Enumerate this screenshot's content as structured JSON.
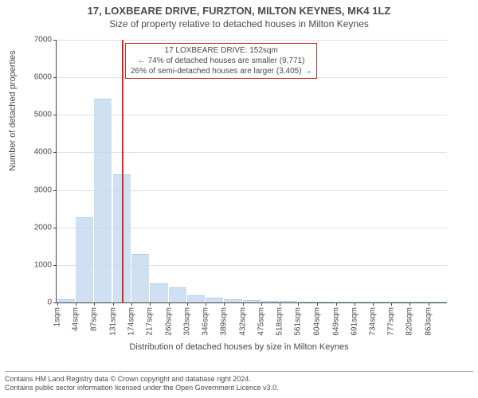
{
  "title_main": "17, LOXBEARE DRIVE, FURZTON, MILTON KEYNES, MK4 1LZ",
  "title_sub": "Size of property relative to detached houses in Milton Keynes",
  "chart": {
    "type": "histogram",
    "ylabel": "Number of detached properties",
    "xlabel": "Distribution of detached houses by size in Milton Keynes",
    "ylim": [
      0,
      7000
    ],
    "ytick_step": 1000,
    "yticks": [
      0,
      1000,
      2000,
      3000,
      4000,
      5000,
      6000,
      7000
    ],
    "xrange": [
      0,
      900
    ],
    "xticks": [
      1,
      44,
      87,
      131,
      174,
      217,
      260,
      303,
      346,
      389,
      432,
      475,
      518,
      561,
      604,
      649,
      691,
      734,
      777,
      820,
      863
    ],
    "xtick_unit": "sqm",
    "bin_width": 43,
    "values": [
      60,
      2250,
      5400,
      3400,
      1270,
      480,
      380,
      170,
      105,
      60,
      50,
      20,
      15,
      10,
      10,
      5,
      5,
      5,
      4,
      3,
      3
    ],
    "bar_color": "#c6dbef",
    "grid_color": "#e0e0e0",
    "axis_color": "#444444",
    "background_color": "#ffffff",
    "marker_value": 152,
    "marker_color": "#d62728",
    "callout": {
      "line1": "17 LOXBEARE DRIVE: 152sqm",
      "line2": "← 74% of detached houses are smaller (9,771)",
      "line3": "26% of semi-detached houses are larger (3,405) →"
    },
    "title_fontsize": 13,
    "label_fontsize": 11,
    "tick_fontsize": 10
  },
  "footer": {
    "line1": "Contains HM Land Registry data © Crown copyright and database right 2024.",
    "line2": "Contains public sector information licensed under the Open Government Licence v3.0."
  }
}
